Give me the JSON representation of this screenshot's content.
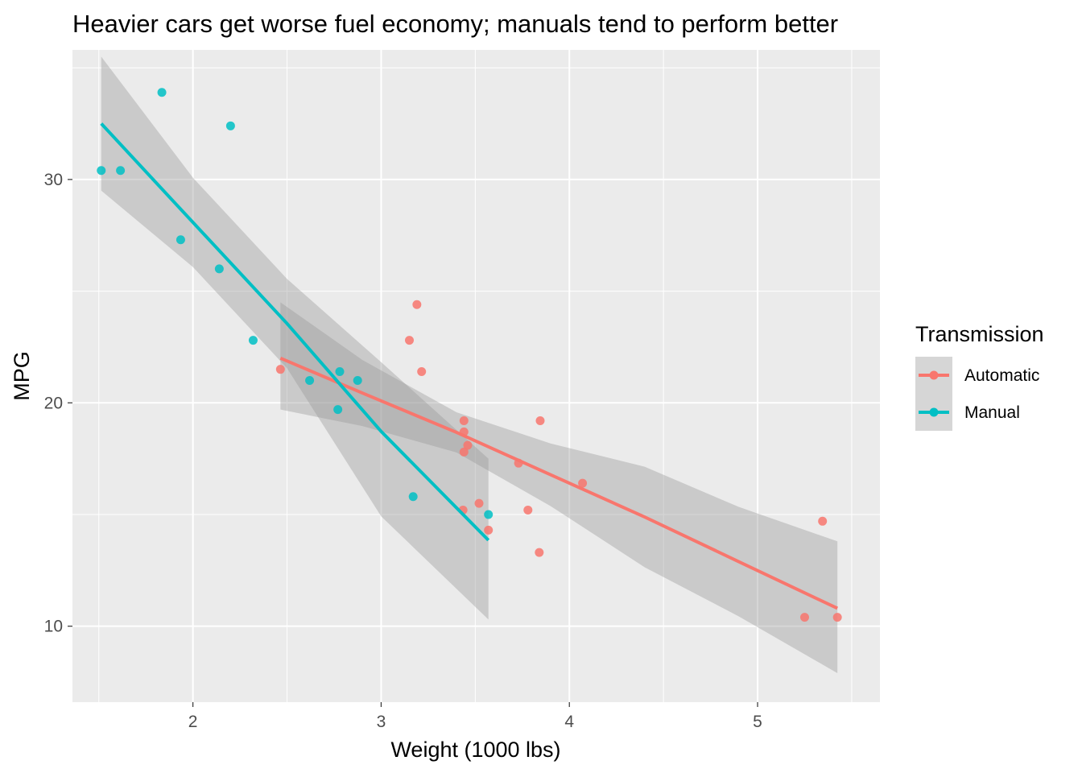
{
  "chart_data": {
    "type": "scatter",
    "title": "Heavier cars get worse fuel economy; manuals tend to perform better",
    "xlabel": "Weight (1000 lbs)",
    "ylabel": "MPG",
    "xlim": [
      1.36,
      5.65
    ],
    "ylim": [
      6.6,
      35.8
    ],
    "xticks": [
      2,
      3,
      4,
      5
    ],
    "yticks": [
      10,
      20,
      30
    ],
    "grid": true,
    "legend": {
      "title": "Transmission",
      "placement": "right",
      "entries": [
        "Automatic",
        "Manual"
      ]
    },
    "series": [
      {
        "name": "Automatic",
        "color": "#F8766D",
        "points": [
          {
            "x": 3.215,
            "y": 21.4
          },
          {
            "x": 3.44,
            "y": 18.7
          },
          {
            "x": 3.46,
            "y": 18.1
          },
          {
            "x": 3.57,
            "y": 14.3
          },
          {
            "x": 3.19,
            "y": 24.4
          },
          {
            "x": 3.15,
            "y": 22.8
          },
          {
            "x": 3.44,
            "y": 19.2
          },
          {
            "x": 3.44,
            "y": 17.8
          },
          {
            "x": 4.07,
            "y": 16.4
          },
          {
            "x": 3.73,
            "y": 17.3
          },
          {
            "x": 3.78,
            "y": 15.2
          },
          {
            "x": 5.25,
            "y": 10.4
          },
          {
            "x": 5.424,
            "y": 10.4
          },
          {
            "x": 5.345,
            "y": 14.7
          },
          {
            "x": 2.465,
            "y": 21.5
          },
          {
            "x": 3.52,
            "y": 15.5
          },
          {
            "x": 3.435,
            "y": 15.2
          },
          {
            "x": 3.84,
            "y": 13.3
          },
          {
            "x": 3.845,
            "y": 19.2
          }
        ],
        "fit": {
          "x": [
            2.465,
            2.9,
            3.4,
            3.9,
            4.4,
            4.9,
            5.424
          ],
          "y": [
            22.0,
            20.44,
            18.68,
            16.78,
            14.89,
            12.89,
            10.8
          ],
          "lower": [
            19.7,
            18.96,
            17.78,
            15.38,
            12.64,
            10.44,
            7.9
          ],
          "upper": [
            24.5,
            21.92,
            19.58,
            18.18,
            17.14,
            15.34,
            13.8
          ]
        }
      },
      {
        "name": "Manual",
        "color": "#00BFC4",
        "points": [
          {
            "x": 2.62,
            "y": 21.0
          },
          {
            "x": 2.875,
            "y": 21.0
          },
          {
            "x": 2.32,
            "y": 22.8
          },
          {
            "x": 2.2,
            "y": 32.4
          },
          {
            "x": 1.615,
            "y": 30.4
          },
          {
            "x": 1.835,
            "y": 33.9
          },
          {
            "x": 1.935,
            "y": 27.3
          },
          {
            "x": 2.14,
            "y": 26.0
          },
          {
            "x": 1.513,
            "y": 30.4
          },
          {
            "x": 3.17,
            "y": 15.8
          },
          {
            "x": 2.77,
            "y": 19.7
          },
          {
            "x": 3.57,
            "y": 15.0
          },
          {
            "x": 2.78,
            "y": 21.4
          }
        ],
        "fit": {
          "x": [
            1.513,
            2.0,
            2.5,
            3.0,
            3.57
          ],
          "y": [
            32.5,
            28.08,
            23.55,
            18.72,
            13.85
          ],
          "lower": [
            29.5,
            26.08,
            21.55,
            14.92,
            10.3
          ],
          "upper": [
            35.5,
            30.08,
            25.55,
            21.82,
            17.5
          ]
        }
      }
    ]
  }
}
